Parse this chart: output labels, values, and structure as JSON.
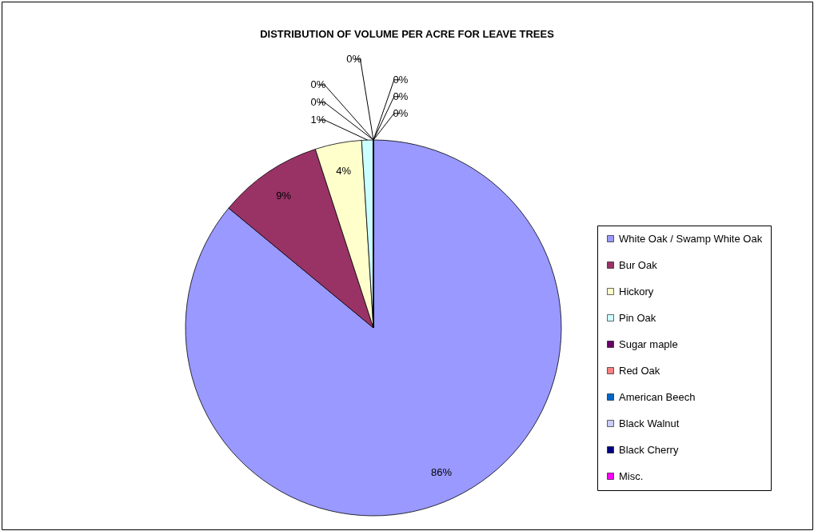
{
  "chart_data": {
    "type": "pie",
    "title": "DISTRIBUTION OF VOLUME PER ACRE FOR LEAVE TREES",
    "categories": [
      "White Oak / Swamp White Oak",
      "Bur Oak",
      "Hickory",
      "Pin Oak",
      "Sugar maple",
      "Red Oak",
      "American Beech",
      "Black Walnut",
      "Black Cherry",
      "Misc."
    ],
    "values": [
      86,
      9,
      4,
      1,
      0,
      0,
      0,
      0,
      0,
      0
    ],
    "value_labels": [
      "86%",
      "9%",
      "4%",
      "1%",
      "0%",
      "0%",
      "0%",
      "0%",
      "0%",
      "0%"
    ],
    "colors": [
      "#9999ff",
      "#993366",
      "#ffffcc",
      "#ccffff",
      "#660066",
      "#ff8080",
      "#0066cc",
      "#ccccff",
      "#000080",
      "#ff00ff"
    ],
    "legend": "right"
  }
}
